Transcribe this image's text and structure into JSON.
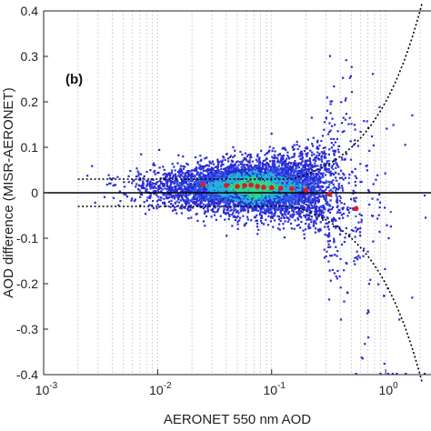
{
  "chart_data": {
    "type": "scatter",
    "panel_label": "(b)",
    "xlabel": "AERONET 550 nm AOD",
    "ylabel": "AOD difference (MISR-AERONET)",
    "xscale": "log",
    "xlim": [
      0.001,
      2.5
    ],
    "ylim": [
      -0.4,
      0.4
    ],
    "grid": "vertical dotted (major and minor)",
    "x_ticks": [
      {
        "value": 0.001,
        "base": "10",
        "exp": "-3"
      },
      {
        "value": 0.01,
        "base": "10",
        "exp": "-2"
      },
      {
        "value": 0.1,
        "base": "10",
        "exp": "-1"
      },
      {
        "value": 1,
        "base": "10",
        "exp": "0"
      }
    ],
    "y_ticks": [
      {
        "value": 0.4,
        "label": "0.4"
      },
      {
        "value": 0.3,
        "label": "0.3"
      },
      {
        "value": 0.2,
        "label": "0.2"
      },
      {
        "value": 0.1,
        "label": "0.1"
      },
      {
        "value": 0,
        "label": "0"
      },
      {
        "value": -0.1,
        "label": "-0.1"
      },
      {
        "value": -0.2,
        "label": "-0.2"
      },
      {
        "value": -0.3,
        "label": "-0.3"
      },
      {
        "value": -0.4,
        "label": "-0.4"
      }
    ],
    "reference_line": {
      "y": 0,
      "color": "#000000"
    },
    "envelope": {
      "description": "dotted uncertainty envelope ±max(0.03, 0.2·AOD)",
      "floor": 0.03,
      "slope": 0.2,
      "color": "#000000"
    },
    "scatter_density": {
      "colors": [
        "#2a2ad6",
        "#2f5fe8",
        "#22b3d9",
        "#2ed68f"
      ],
      "x_range": [
        0.002,
        2.4
      ],
      "center_x": 0.07
    },
    "bin_medians": {
      "color": "#e01b1b",
      "points": [
        {
          "x": 0.025,
          "y": 0.018
        },
        {
          "x": 0.04,
          "y": 0.016
        },
        {
          "x": 0.05,
          "y": 0.014
        },
        {
          "x": 0.058,
          "y": 0.016
        },
        {
          "x": 0.066,
          "y": 0.017
        },
        {
          "x": 0.075,
          "y": 0.014
        },
        {
          "x": 0.085,
          "y": 0.012
        },
        {
          "x": 0.1,
          "y": 0.011
        },
        {
          "x": 0.12,
          "y": 0.01
        },
        {
          "x": 0.15,
          "y": 0.009
        },
        {
          "x": 0.2,
          "y": 0.006
        },
        {
          "x": 0.32,
          "y": -0.003
        },
        {
          "x": 0.55,
          "y": -0.035
        }
      ]
    }
  }
}
